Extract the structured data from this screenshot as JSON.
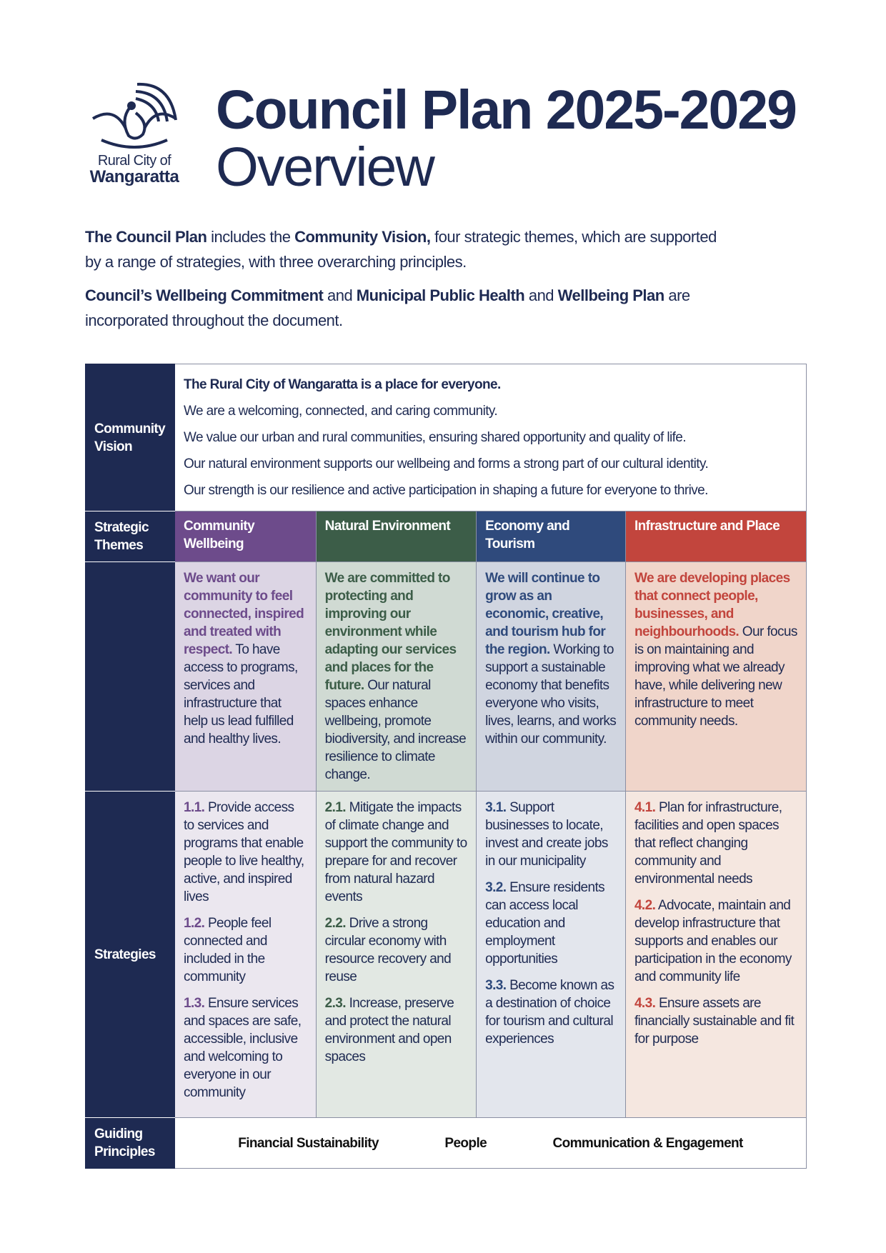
{
  "logo": {
    "line1": "Rural City of",
    "line2": "Wangaratta"
  },
  "title": {
    "line1": "Council Plan 2025-2029",
    "line2": "Overview"
  },
  "intro": {
    "p1": [
      {
        "t": "The Council Plan",
        "b": true
      },
      {
        "t": " includes the ",
        "b": false
      },
      {
        "t": "Community Vision,",
        "b": true
      },
      {
        "t": " four strategic themes, which are supported by a range  of strategies, with three overarching principles.",
        "b": false
      }
    ],
    "p2": [
      {
        "t": "Council’s Wellbeing Commitment",
        "b": true
      },
      {
        "t": " and ",
        "b": false
      },
      {
        "t": "Municipal Public Health",
        "b": true
      },
      {
        "t": " and ",
        "b": false
      },
      {
        "t": "Wellbeing Plan",
        "b": true
      },
      {
        "t": " are incorporated throughout the document.",
        "b": false
      }
    ]
  },
  "table": {
    "row_labels": {
      "vision": "Community Vision",
      "themes": "Strategic Themes",
      "strategies": "Strategies",
      "principles": "Guiding Principles"
    },
    "vision": [
      "The Rural City of Wangaratta is a place for everyone.",
      "We are a welcoming, connected, and caring community.",
      "We value our urban and rural communities, ensuring shared opportunity and quality of life.",
      "Our natural environment supports our wellbeing and forms a strong part of our cultural identity.",
      "Our strength is our resilience and active participation in shaping a future for everyone to thrive."
    ],
    "themes": [
      {
        "name": "Community Wellbeing",
        "color": "#6d4b8b",
        "lead": "We want our community to feel connected, inspired and treated with respect.",
        "body": " To have access to programs, services and infrastructure that help us lead fulfilled and healthy lives.",
        "strategies": [
          {
            "num": "1.1.",
            "text": " Provide access to services and programs that enable people to live healthy, active, and inspired lives"
          },
          {
            "num": "1.2.",
            "text": " People feel connected and included in the community"
          },
          {
            "num": "1.3.",
            "text": " Ensure services and spaces are safe, accessible, inclusive and welcoming to everyone in our community"
          }
        ]
      },
      {
        "name": "Natural Environment",
        "color": "#3c5d48",
        "lead": "We are committed to protecting and improving our environment while adapting our services and places for the future.",
        "body": "  Our natural spaces enhance wellbeing, promote biodiversity, and increase resilience to climate change.",
        "strategies": [
          {
            "num": "2.1.",
            "text": " Mitigate the impacts of climate change and support the community to prepare for and recover from natural hazard events"
          },
          {
            "num": "2.2.",
            "text": " Drive a strong circular economy with resource recovery and reuse"
          },
          {
            "num": "2.3.",
            "text": " Increase, preserve and protect the natural environment and open spaces"
          }
        ]
      },
      {
        "name": "Economy and Tourism",
        "color": "#2f4a7c",
        "lead": "We will continue to grow as an economic, creative, and tourism hub for the region.",
        "body": " Working to support a sustainable economy that benefits everyone who visits, lives, learns, and works within our community.",
        "strategies": [
          {
            "num": "3.1.",
            "text": " Support businesses to locate, invest and create jobs in our municipality"
          },
          {
            "num": "3.2.",
            "text": " Ensure residents can access local education and employment opportunities"
          },
          {
            "num": "3.3.",
            "text": " Become known as a destination of choice for tourism and cultural experiences"
          }
        ]
      },
      {
        "name": "Infrastructure and Place",
        "color": "#c2453d",
        "lead": "We are developing places that connect people, businesses, and neighbourhoods.",
        "body": " Our focus is on maintaining and improving what we already have, while delivering new infrastructure to meet community needs.",
        "strategies": [
          {
            "num": "4.1.",
            "text": " Plan for infrastructure, facilities and open spaces that reflect changing community and environmental needs"
          },
          {
            "num": "4.2.",
            "text": " Advocate, maintain and develop infrastructure that supports and enables our participation in the economy and community life"
          },
          {
            "num": "4.3.",
            "text": " Ensure assets are financially sustainable and fit for purpose"
          }
        ]
      }
    ],
    "principles": [
      "Financial Sustainability",
      "People",
      "Communication & Engagement"
    ]
  }
}
